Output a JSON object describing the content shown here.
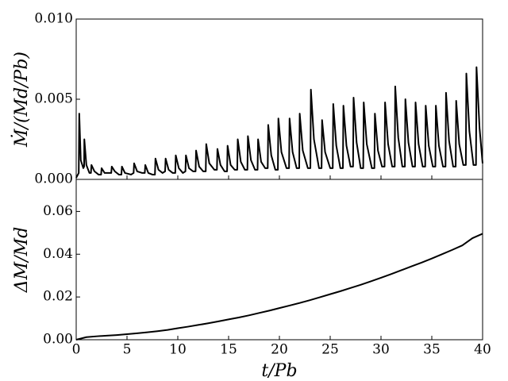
{
  "chart_data": [
    {
      "type": "line",
      "ylabel": "Ṁ/(Md/Pb)",
      "color": "#000000",
      "x": [
        0,
        0.25,
        0.3,
        0.45,
        0.7,
        0.78,
        0.8,
        1.0,
        1.3,
        1.45,
        1.5,
        1.8,
        2.2,
        2.45,
        2.5,
        2.8,
        3.2,
        3.45,
        3.5,
        3.8,
        4.2,
        4.45,
        4.5,
        4.8,
        5.4,
        5.65,
        5.7,
        6.0,
        6.5,
        6.75,
        6.8,
        7.1,
        7.5,
        7.75,
        7.8,
        8.1,
        8.5,
        8.75,
        8.8,
        9.1,
        9.5,
        9.75,
        9.8,
        10.1,
        10.5,
        10.75,
        10.8,
        11.1,
        11.5,
        11.75,
        11.8,
        12.1,
        12.5,
        12.75,
        12.8,
        13.1,
        13.6,
        13.85,
        13.9,
        14.2,
        14.6,
        14.85,
        14.9,
        15.2,
        15.6,
        15.85,
        15.9,
        16.2,
        16.6,
        16.85,
        16.9,
        17.2,
        17.6,
        17.85,
        17.9,
        18.2,
        18.6,
        18.85,
        18.9,
        19.2,
        19.6,
        19.85,
        19.9,
        20.2,
        20.7,
        20.95,
        21.0,
        21.3,
        21.7,
        21.95,
        22.0,
        22.3,
        22.8,
        23.05,
        23.1,
        23.4,
        23.9,
        24.15,
        24.2,
        24.5,
        25.0,
        25.25,
        25.3,
        25.6,
        26.0,
        26.25,
        26.3,
        26.6,
        27.0,
        27.25,
        27.3,
        27.6,
        28.0,
        28.25,
        28.3,
        28.6,
        29.1,
        29.35,
        29.4,
        29.7,
        30.1,
        30.35,
        30.4,
        30.7,
        31.1,
        31.35,
        31.4,
        31.7,
        32.1,
        32.35,
        32.4,
        32.7,
        33.1,
        33.35,
        33.4,
        33.7,
        34.1,
        34.35,
        34.4,
        34.7,
        35.1,
        35.35,
        35.4,
        35.7,
        36.1,
        36.35,
        36.4,
        36.7,
        37.1,
        37.35,
        37.4,
        37.7,
        38.1,
        38.35,
        38.4,
        38.7,
        39.1,
        39.35,
        39.4,
        39.7,
        40
      ],
      "values": [
        0.0001,
        0.0004,
        0.0041,
        0.0012,
        0.0007,
        0.0008,
        0.0025,
        0.0009,
        0.0004,
        0.0004,
        0.0009,
        0.0005,
        0.0003,
        0.0003,
        0.0007,
        0.0004,
        0.0004,
        0.0004,
        0.0008,
        0.0005,
        0.0003,
        0.0003,
        0.0008,
        0.0004,
        0.0003,
        0.0004,
        0.001,
        0.0005,
        0.0004,
        0.0004,
        0.0009,
        0.0004,
        0.0003,
        0.0003,
        0.0013,
        0.0006,
        0.0004,
        0.0005,
        0.0013,
        0.0006,
        0.0004,
        0.0004,
        0.0015,
        0.0007,
        0.0004,
        0.0005,
        0.0015,
        0.0007,
        0.0005,
        0.0005,
        0.0018,
        0.0008,
        0.0005,
        0.0005,
        0.0022,
        0.001,
        0.0006,
        0.0006,
        0.0019,
        0.0009,
        0.0005,
        0.0005,
        0.0021,
        0.0009,
        0.0006,
        0.0006,
        0.0025,
        0.0011,
        0.0006,
        0.0006,
        0.0027,
        0.0012,
        0.0006,
        0.0006,
        0.0025,
        0.0011,
        0.0007,
        0.0007,
        0.0034,
        0.0015,
        0.0006,
        0.0006,
        0.0038,
        0.0017,
        0.0007,
        0.0007,
        0.0038,
        0.0017,
        0.0007,
        0.0007,
        0.0041,
        0.0018,
        0.0007,
        0.0007,
        0.0056,
        0.0025,
        0.0007,
        0.0007,
        0.0037,
        0.0017,
        0.0007,
        0.0007,
        0.0047,
        0.0021,
        0.0007,
        0.0007,
        0.0046,
        0.0021,
        0.0008,
        0.0008,
        0.0051,
        0.0023,
        0.0007,
        0.0007,
        0.0048,
        0.0022,
        0.0007,
        0.0007,
        0.0041,
        0.0018,
        0.0008,
        0.0008,
        0.0048,
        0.0022,
        0.0008,
        0.0008,
        0.0058,
        0.0026,
        0.0008,
        0.0008,
        0.005,
        0.0023,
        0.0008,
        0.0008,
        0.0048,
        0.0022,
        0.0008,
        0.0008,
        0.0046,
        0.0021,
        0.0008,
        0.0008,
        0.0046,
        0.0021,
        0.0008,
        0.0008,
        0.0054,
        0.0024,
        0.0008,
        0.0008,
        0.0049,
        0.0022,
        0.0009,
        0.0009,
        0.0066,
        0.003,
        0.0009,
        0.0009,
        0.007,
        0.0032,
        0.001
      ],
      "xlim": [
        0,
        40
      ],
      "xticks": [
        0,
        5,
        10,
        15,
        20,
        25,
        30,
        35,
        40
      ],
      "ylim": [
        0,
        0.01
      ],
      "yticks": [
        {
          "value": 0,
          "label": "0.000"
        },
        {
          "value": 0.005,
          "label": "0.005"
        },
        {
          "value": 0.01,
          "label": "0.010"
        }
      ]
    },
    {
      "type": "line",
      "xlabel": "t/Pb",
      "ylabel": "ΔM/Md",
      "color": "#000000",
      "x": [
        0,
        1,
        2,
        3,
        4,
        5,
        6,
        7,
        8,
        9,
        10,
        11,
        12,
        13,
        14,
        15,
        16,
        17,
        18,
        19,
        20,
        21,
        22,
        23,
        24,
        25,
        26,
        27,
        28,
        29,
        30,
        31,
        32,
        33,
        34,
        35,
        36,
        37,
        38,
        39,
        40
      ],
      "values": [
        0,
        0.0012,
        0.0016,
        0.0019,
        0.0022,
        0.0026,
        0.003,
        0.0035,
        0.004,
        0.0046,
        0.0054,
        0.0061,
        0.0069,
        0.0077,
        0.0086,
        0.0095,
        0.0104,
        0.0114,
        0.0125,
        0.0136,
        0.0148,
        0.016,
        0.0172,
        0.0185,
        0.0199,
        0.0213,
        0.0227,
        0.0242,
        0.0257,
        0.0273,
        0.029,
        0.0307,
        0.0325,
        0.0343,
        0.0361,
        0.038,
        0.04,
        0.042,
        0.0441,
        0.0475,
        0.0496
      ],
      "xlim": [
        0,
        40
      ],
      "xticks": [
        0,
        5,
        10,
        15,
        20,
        25,
        30,
        35,
        40
      ],
      "ylim": [
        0,
        0.075
      ],
      "yticks": [
        {
          "value": 0,
          "label": "0.00"
        },
        {
          "value": 0.02,
          "label": "0.02"
        },
        {
          "value": 0.04,
          "label": "0.04"
        },
        {
          "value": 0.06,
          "label": "0.06"
        }
      ]
    }
  ]
}
